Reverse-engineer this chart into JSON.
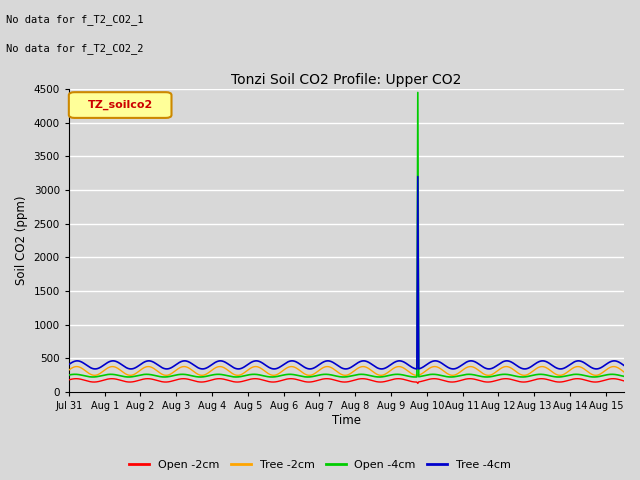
{
  "title": "Tonzi Soil CO2 Profile: Upper CO2",
  "ylabel": "Soil CO2 (ppm)",
  "xlabel": "Time",
  "annotation_line1": "No data for f_T2_CO2_1",
  "annotation_line2": "No data for f_T2_CO2_2",
  "legend_label_text": "TZ_soilco2",
  "ylim": [
    0,
    4500
  ],
  "xlim_days": [
    0,
    15.5
  ],
  "x_tick_labels": [
    "Jul 31",
    "Aug 1",
    "Aug 2",
    "Aug 3",
    "Aug 4",
    "Aug 5",
    "Aug 6",
    "Aug 7",
    "Aug 8",
    "Aug 9",
    "Aug 10",
    "Aug 11",
    "Aug 12",
    "Aug 13",
    "Aug 14",
    "Aug 15"
  ],
  "x_tick_positions": [
    0,
    1,
    2,
    3,
    4,
    5,
    6,
    7,
    8,
    9,
    10,
    11,
    12,
    13,
    14,
    15
  ],
  "fig_bg_color": "#d8d8d8",
  "plot_bg_color": "#d8d8d8",
  "grid_color": "#ffffff",
  "legend_entries": [
    {
      "label": "Open -2cm",
      "color": "#ff0000"
    },
    {
      "label": "Tree -2cm",
      "color": "#ffa500"
    },
    {
      "label": "Open -4cm",
      "color": "#00cc00"
    },
    {
      "label": "Tree -4cm",
      "color": "#0000cc"
    }
  ],
  "spike_day": 9.75,
  "spike_green_max": 4450,
  "spike_blue_max": 3200,
  "base_open_2cm": 170,
  "base_tree_2cm": 310,
  "base_open_4cm": 240,
  "base_tree_4cm": 400,
  "amp_open_2cm": 25,
  "amp_tree_2cm": 65,
  "amp_open_4cm": 20,
  "amp_tree_4cm": 60,
  "period_days": 1.0,
  "num_points": 3000
}
